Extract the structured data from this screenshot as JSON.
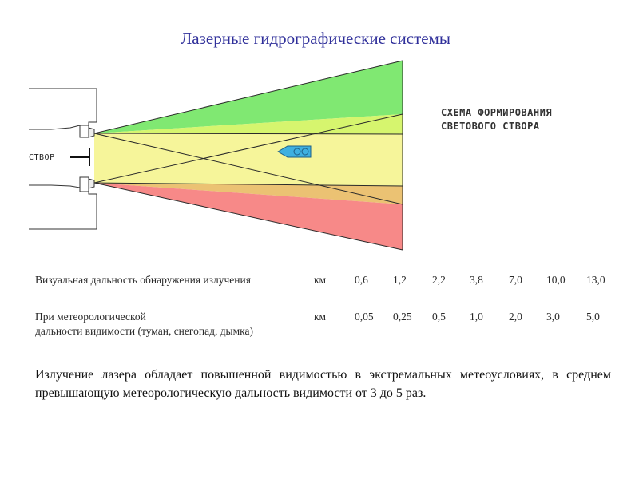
{
  "title": "Лазерные гидрографические системы",
  "diagram": {
    "schema_title_line1": "СХЕМА ФОРМИРОВАНИЯ",
    "schema_title_line2": "СВЕТОВОГО СТВОРА",
    "stvor_label": "СТВОР",
    "colors": {
      "green": "#80e872",
      "light_green": "#d6f56e",
      "yellow": "#f6f59a",
      "orange": "#ebc273",
      "red": "#f78988",
      "ship": "#3fb0e0"
    }
  },
  "table": {
    "row1_label": "Визуальная дальность обнаружения излучения",
    "row1_unit": "км",
    "row1_values": [
      "0,6",
      "1,2",
      "2,2",
      "3,8",
      "7,0",
      "10,0",
      "13,0"
    ],
    "row2_label_line1": "При метеорологической",
    "row2_label_line2": "дальности видимости (туман, снегопад, дымка)",
    "row2_unit": "км",
    "row2_values": [
      "0,05",
      "0,25",
      "0,5",
      "1,0",
      "2,0",
      "3,0",
      "5,0"
    ]
  },
  "body_text": "Излучение лазера обладает повышенной видимостью в экстремальных метеоусловиях, в среднем превышающую метеорологическую дальность видимости от 3 до 5 раз."
}
